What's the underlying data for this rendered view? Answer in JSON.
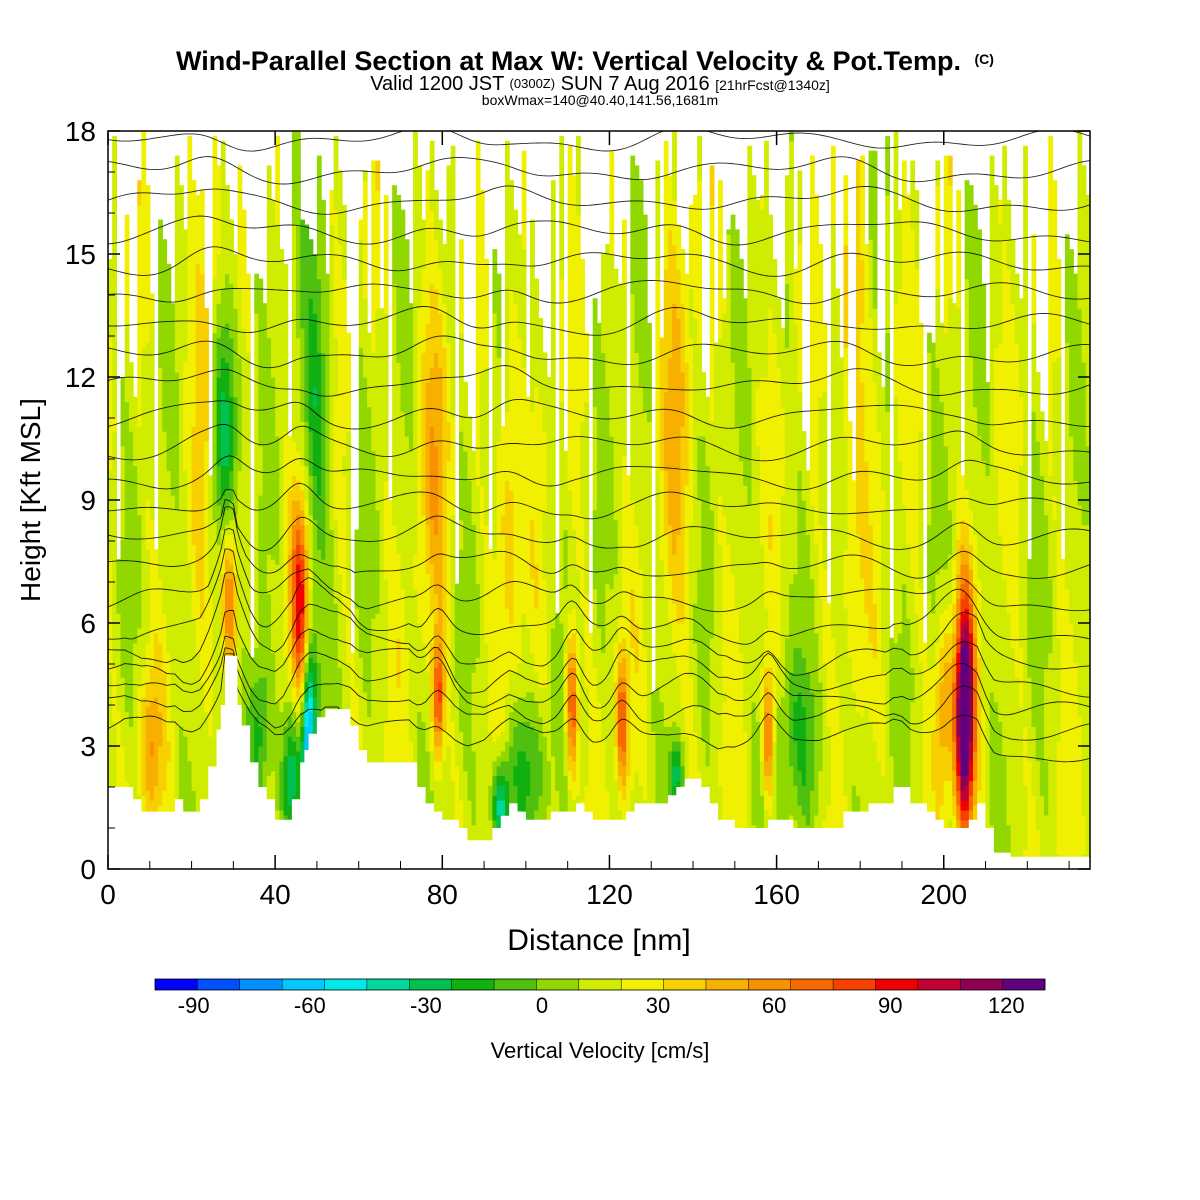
{
  "chart_data": {
    "type": "heatmap",
    "title": "Wind-Parallel Section at Max W: Vertical Velocity & Pot.Temp.",
    "title_mark": "(C)",
    "subtitle_parts": [
      "Valid 1200 JST",
      "(0300Z)",
      "SUN 7 Aug 2016",
      "[21hrFcst@1340z]"
    ],
    "subtitle2": "boxWmax=140@40.40,141.56,1681m",
    "xlabel": "Distance [nm]",
    "ylabel": "Height [Kft MSL]",
    "xlim": [
      0,
      235
    ],
    "ylim": [
      0,
      18
    ],
    "x_ticks": [
      "0",
      "40",
      "80",
      "120",
      "160",
      "200"
    ],
    "x_tick_values": [
      0,
      40,
      80,
      120,
      160,
      200
    ],
    "y_ticks": [
      "0",
      "3",
      "6",
      "9",
      "12",
      "15",
      "18"
    ],
    "y_tick_values": [
      0,
      3,
      6,
      9,
      12,
      15,
      18
    ],
    "colorbar": {
      "label": "Vertical Velocity [cm/s]",
      "tick_labels": [
        "-90",
        "-60",
        "-30",
        "0",
        "30",
        "60",
        "90",
        "120"
      ],
      "tick_values": [
        -90,
        -60,
        -30,
        0,
        30,
        60,
        90,
        120
      ],
      "min": -100,
      "max": 130,
      "step": 10,
      "colors": [
        "#0000ff",
        "#0050ff",
        "#0090ff",
        "#00c8ff",
        "#00e8e8",
        "#00d8a0",
        "#00c050",
        "#10b010",
        "#50c010",
        "#90d800",
        "#d0ec00",
        "#f0f000",
        "#f8d000",
        "#f8b000",
        "#f89000",
        "#f86800",
        "#f84000",
        "#f00000",
        "#c00030",
        "#900050",
        "#600080"
      ]
    },
    "terrain_kft": [
      [
        0,
        2.0
      ],
      [
        4,
        2.0
      ],
      [
        6,
        1.7
      ],
      [
        8,
        1.4
      ],
      [
        10,
        1.4
      ],
      [
        14,
        1.4
      ],
      [
        16,
        1.7
      ],
      [
        18,
        1.4
      ],
      [
        20,
        1.4
      ],
      [
        22,
        1.7
      ],
      [
        24,
        2.5
      ],
      [
        26,
        3.4
      ],
      [
        27,
        4.0
      ],
      [
        28,
        5.2
      ],
      [
        30,
        5.2
      ],
      [
        31,
        4.0
      ],
      [
        32,
        3.5
      ],
      [
        34,
        2.6
      ],
      [
        36,
        2.0
      ],
      [
        38,
        1.7
      ],
      [
        40,
        1.2
      ],
      [
        42,
        1.2
      ],
      [
        44,
        1.7
      ],
      [
        46,
        2.6
      ],
      [
        47,
        2.9
      ],
      [
        48,
        3.3
      ],
      [
        50,
        3.7
      ],
      [
        52,
        3.9
      ],
      [
        55,
        3.9
      ],
      [
        58,
        3.5
      ],
      [
        60,
        2.9
      ],
      [
        62,
        2.6
      ],
      [
        65,
        2.6
      ],
      [
        68,
        2.6
      ],
      [
        70,
        2.6
      ],
      [
        72,
        2.6
      ],
      [
        74,
        2.0
      ],
      [
        76,
        1.6
      ],
      [
        78,
        1.4
      ],
      [
        80,
        1.2
      ],
      [
        82,
        1.2
      ],
      [
        84,
        1.0
      ],
      [
        86,
        0.7
      ],
      [
        88,
        0.7
      ],
      [
        90,
        0.7
      ],
      [
        92,
        1.0
      ],
      [
        94,
        1.3
      ],
      [
        96,
        1.6
      ],
      [
        98,
        1.4
      ],
      [
        100,
        1.2
      ],
      [
        104,
        1.2
      ],
      [
        106,
        1.4
      ],
      [
        110,
        1.4
      ],
      [
        112,
        1.6
      ],
      [
        114,
        1.4
      ],
      [
        116,
        1.2
      ],
      [
        118,
        1.2
      ],
      [
        120,
        1.2
      ],
      [
        124,
        1.4
      ],
      [
        126,
        1.6
      ],
      [
        130,
        1.6
      ],
      [
        134,
        1.8
      ],
      [
        136,
        2.0
      ],
      [
        138,
        2.2
      ],
      [
        140,
        2.2
      ],
      [
        142,
        2.0
      ],
      [
        144,
        1.6
      ],
      [
        146,
        1.2
      ],
      [
        148,
        1.2
      ],
      [
        150,
        1.0
      ],
      [
        152,
        1.0
      ],
      [
        156,
        1.0
      ],
      [
        158,
        1.2
      ],
      [
        162,
        1.2
      ],
      [
        164,
        1.0
      ],
      [
        170,
        1.0
      ],
      [
        176,
        1.4
      ],
      [
        182,
        1.6
      ],
      [
        186,
        1.6
      ],
      [
        188,
        2.0
      ],
      [
        190,
        2.0
      ],
      [
        192,
        1.6
      ],
      [
        196,
        1.4
      ],
      [
        198,
        1.2
      ],
      [
        200,
        1.0
      ],
      [
        204,
        1.0
      ],
      [
        206,
        1.2
      ],
      [
        208,
        1.6
      ],
      [
        210,
        1.0
      ],
      [
        212,
        0.4
      ],
      [
        216,
        0.3
      ],
      [
        220,
        0.3
      ],
      [
        235,
        0.3
      ]
    ],
    "updrafts": [
      {
        "x": 29,
        "z": 6.6,
        "w": 60,
        "sx": 1.4,
        "sz": 1.5
      },
      {
        "x": 46,
        "z": 6.5,
        "w": 65,
        "sx": 1.6,
        "sz": 1.8
      },
      {
        "x": 79,
        "z": 4.2,
        "w": 60,
        "sx": 1.0,
        "sz": 1.0
      },
      {
        "x": 111,
        "z": 4.0,
        "w": 60,
        "sx": 1.0,
        "sz": 1.3
      },
      {
        "x": 123,
        "z": 3.6,
        "w": 55,
        "sx": 1.0,
        "sz": 1.2
      },
      {
        "x": 158,
        "z": 3.2,
        "w": 55,
        "sx": 1.0,
        "sz": 1.2
      },
      {
        "x": 205,
        "z": 3.8,
        "w": 125,
        "sx": 1.6,
        "sz": 2.0
      },
      {
        "x": 200,
        "z": 4.0,
        "w": 35,
        "sx": 1.5,
        "sz": 1.5
      },
      {
        "x": 10,
        "z": 3.0,
        "w": 30,
        "sx": 2.0,
        "sz": 1.3
      },
      {
        "x": 24,
        "z": 14.0,
        "w": 25,
        "sx": 2.5,
        "sz": 4.0
      },
      {
        "x": 78,
        "z": 10.0,
        "w": 25,
        "sx": 2.5,
        "sz": 3.0
      },
      {
        "x": 96,
        "z": 9.0,
        "w": 25,
        "sx": 2.0,
        "sz": 3.0
      },
      {
        "x": 136,
        "z": 11.0,
        "w": 20,
        "sx": 3.0,
        "sz": 4.0
      },
      {
        "x": 178,
        "z": 12.0,
        "w": 20,
        "sx": 3.0,
        "sz": 4.0
      }
    ],
    "downdrafts": [
      {
        "x": 48,
        "z": 3.2,
        "w": -90,
        "sx": 1.2,
        "sz": 1.6
      },
      {
        "x": 44,
        "z": 2.4,
        "w": -45,
        "sx": 1.5,
        "sz": 1.2
      },
      {
        "x": 28,
        "z": 11.0,
        "w": -45,
        "sx": 2.5,
        "sz": 2.5
      },
      {
        "x": 36,
        "z": 3.2,
        "w": -40,
        "sx": 2.0,
        "sz": 1.5
      },
      {
        "x": 94,
        "z": 1.5,
        "w": -55,
        "sx": 1.5,
        "sz": 0.8
      },
      {
        "x": 136,
        "z": 2.3,
        "w": -40,
        "sx": 1.2,
        "sz": 0.6
      },
      {
        "x": 50,
        "z": 11.0,
        "w": -30,
        "sx": 2.5,
        "sz": 3.0
      },
      {
        "x": 165,
        "z": 3.0,
        "w": -20,
        "sx": 5.0,
        "sz": 1.5
      },
      {
        "x": 100,
        "z": 2.5,
        "w": -25,
        "sx": 4.0,
        "sz": 1.2
      }
    ]
  }
}
